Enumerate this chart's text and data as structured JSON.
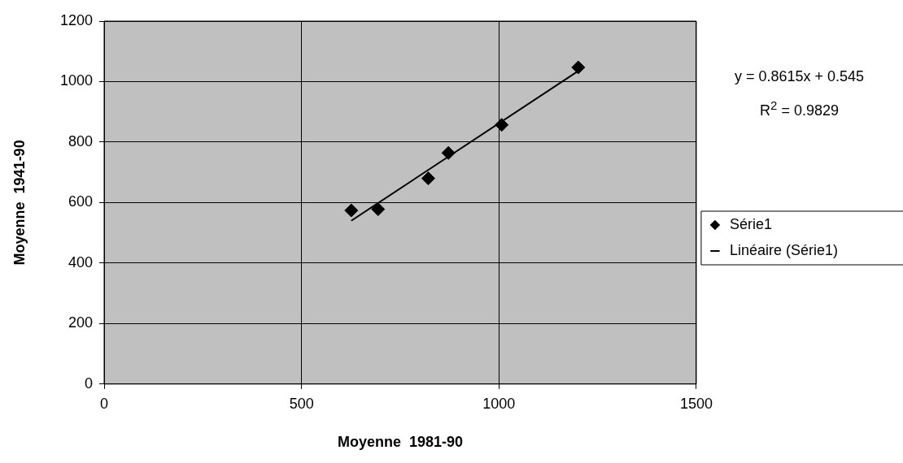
{
  "chart_data": {
    "type": "scatter",
    "xlabel": "Moyenne  1981-90",
    "ylabel": "Moyenne  1941-90",
    "x": [
      626,
      694,
      821,
      872,
      1007,
      1201
    ],
    "series": [
      {
        "name": "Série1",
        "color": "#000000",
        "marker": "diamond",
        "values": [
          574,
          578,
          680,
          764,
          857,
          1047
        ]
      },
      {
        "name": "Linéaire (Série1)",
        "type": "line",
        "color": "#000000",
        "marker": "none",
        "x": [
          626,
          1201
        ],
        "values": [
          540,
          1035
        ]
      }
    ],
    "xlim": [
      0,
      1500
    ],
    "xticks": [
      0,
      500,
      1000,
      1500
    ],
    "ylim": [
      0,
      1200
    ],
    "yticks": [
      0,
      200,
      400,
      600,
      800,
      1000,
      1200
    ],
    "grid": true,
    "legend": "right",
    "annotations": [
      "y = 0.8615x + 0.545",
      "R$^{2}$ = 0.9829"
    ]
  }
}
